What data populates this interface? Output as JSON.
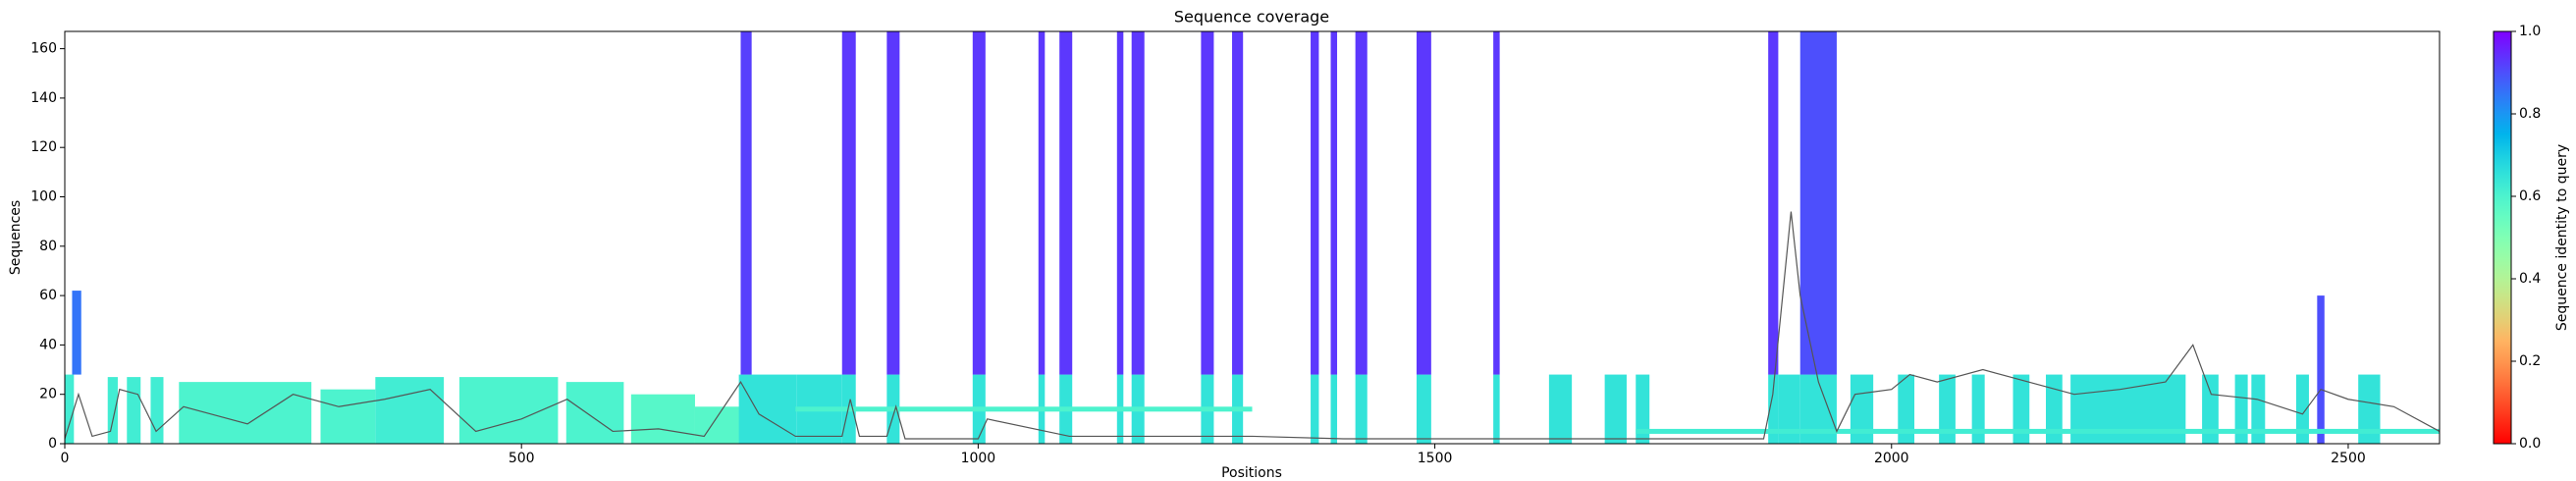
{
  "chart_data": {
    "type": "coverage",
    "title": "Sequence coverage",
    "xlabel": "Positions",
    "ylabel": "Sequences",
    "xlim": [
      0,
      2600
    ],
    "xticks": [
      0,
      500,
      1000,
      1500,
      2000,
      2500
    ],
    "ylim": [
      0,
      167
    ],
    "yticks": [
      0,
      20,
      40,
      60,
      80,
      100,
      120,
      140,
      160
    ],
    "colormap": "rainbow_r",
    "colorbar_label": "Sequence identity to query",
    "colorbar_lim": [
      0,
      1
    ],
    "colorbar_ticks": [
      {
        "value": 0,
        "label": "0.0"
      },
      {
        "value": 0.2,
        "label": "0.2"
      },
      {
        "value": 0.4,
        "label": "0.4"
      },
      {
        "value": 0.6,
        "label": "0.6"
      },
      {
        "value": 0.8,
        "label": "0.8"
      },
      {
        "value": 1,
        "label": "1.0"
      }
    ],
    "blocks": {
      "x0": [
        0,
        8,
        47,
        68,
        94,
        125,
        280,
        340,
        432,
        549,
        620,
        690,
        738,
        740,
        801,
        851,
        851,
        900,
        900,
        994,
        994,
        1066,
        1066,
        1089,
        1089,
        1152,
        1152,
        1168,
        1168,
        1244,
        1244,
        1278,
        1278,
        1364,
        1364,
        1386,
        1386,
        1413,
        1413,
        1480,
        1480,
        1564,
        1564,
        1865,
        1865,
        1625,
        1686,
        1720,
        1876,
        1900,
        1900,
        1955,
        2007,
        2052,
        2088,
        2133,
        2169,
        2196,
        2340,
        2376,
        2394,
        2443,
        2466,
        2511,
        1720,
        800
      ],
      "x1": [
        10,
        18,
        58,
        83,
        108,
        270,
        340,
        415,
        540,
        612,
        690,
        740,
        801,
        752,
        851,
        866,
        866,
        914,
        914,
        1008,
        1008,
        1073,
        1073,
        1103,
        1103,
        1159,
        1159,
        1182,
        1182,
        1258,
        1258,
        1290,
        1290,
        1373,
        1373,
        1393,
        1393,
        1426,
        1426,
        1496,
        1496,
        1571,
        1571,
        1876,
        1876,
        1650,
        1710,
        1735,
        1900,
        1940,
        1940,
        1980,
        2025,
        2070,
        2102,
        2151,
        2187,
        2322,
        2358,
        2390,
        2409,
        2457,
        2474,
        2535,
        2600,
        1300
      ],
      "y0": [
        0,
        28,
        0,
        0,
        0,
        0,
        0,
        0,
        0,
        0,
        0,
        0,
        0,
        28,
        0,
        0,
        28,
        0,
        28,
        0,
        28,
        0,
        28,
        0,
        28,
        0,
        28,
        0,
        28,
        0,
        28,
        0,
        28,
        0,
        28,
        0,
        28,
        0,
        28,
        0,
        28,
        0,
        28,
        0,
        28,
        0,
        0,
        0,
        0,
        0,
        28,
        0,
        0,
        0,
        0,
        0,
        0,
        0,
        0,
        0,
        0,
        0,
        0,
        0,
        4,
        13
      ],
      "y1": [
        28,
        62,
        27,
        27,
        27,
        25,
        22,
        27,
        27,
        25,
        20,
        15,
        28,
        167,
        28,
        28,
        167,
        28,
        167,
        28,
        167,
        28,
        167,
        28,
        167,
        28,
        167,
        28,
        167,
        28,
        167,
        28,
        167,
        28,
        167,
        28,
        167,
        28,
        167,
        28,
        167,
        28,
        167,
        28,
        167,
        28,
        28,
        28,
        28,
        28,
        167,
        28,
        28,
        28,
        28,
        28,
        28,
        28,
        28,
        28,
        28,
        28,
        60,
        28,
        6,
        15
      ],
      "identity": [
        0.62,
        0.85,
        0.62,
        0.62,
        0.62,
        0.6,
        0.6,
        0.62,
        0.6,
        0.6,
        0.58,
        0.58,
        0.65,
        0.92,
        0.65,
        0.65,
        0.93,
        0.65,
        0.93,
        0.65,
        0.93,
        0.65,
        0.93,
        0.65,
        0.93,
        0.65,
        0.93,
        0.65,
        0.93,
        0.65,
        0.93,
        0.65,
        0.93,
        0.65,
        0.93,
        0.65,
        0.93,
        0.65,
        0.93,
        0.65,
        0.93,
        0.65,
        0.93,
        0.65,
        0.93,
        0.65,
        0.65,
        0.65,
        0.65,
        0.65,
        0.9,
        0.65,
        0.65,
        0.65,
        0.65,
        0.65,
        0.65,
        0.65,
        0.65,
        0.65,
        0.65,
        0.65,
        0.9,
        0.65,
        0.62,
        0.6
      ]
    },
    "coverage_line": {
      "color": "#555555",
      "x": [
        0,
        15,
        30,
        50,
        60,
        80,
        100,
        130,
        160,
        200,
        250,
        300,
        350,
        400,
        450,
        500,
        550,
        600,
        650,
        700,
        740,
        760,
        800,
        851,
        860,
        870,
        900,
        910,
        920,
        1000,
        1010,
        1100,
        1200,
        1300,
        1400,
        1500,
        1600,
        1700,
        1800,
        1860,
        1870,
        1890,
        1900,
        1920,
        1940,
        1960,
        2000,
        2020,
        2050,
        2100,
        2200,
        2250,
        2300,
        2330,
        2350,
        2400,
        2450,
        2470,
        2500,
        2550,
        2600
      ],
      "y": [
        2,
        20,
        3,
        5,
        22,
        20,
        5,
        15,
        12,
        8,
        20,
        15,
        18,
        22,
        5,
        10,
        18,
        5,
        6,
        3,
        25,
        12,
        3,
        3,
        18,
        3,
        3,
        15,
        2,
        2,
        10,
        3,
        3,
        3,
        2,
        2,
        2,
        2,
        2,
        2,
        20,
        94,
        60,
        25,
        5,
        20,
        22,
        28,
        25,
        30,
        20,
        22,
        25,
        40,
        20,
        18,
        12,
        22,
        18,
        15,
        5
      ]
    }
  }
}
